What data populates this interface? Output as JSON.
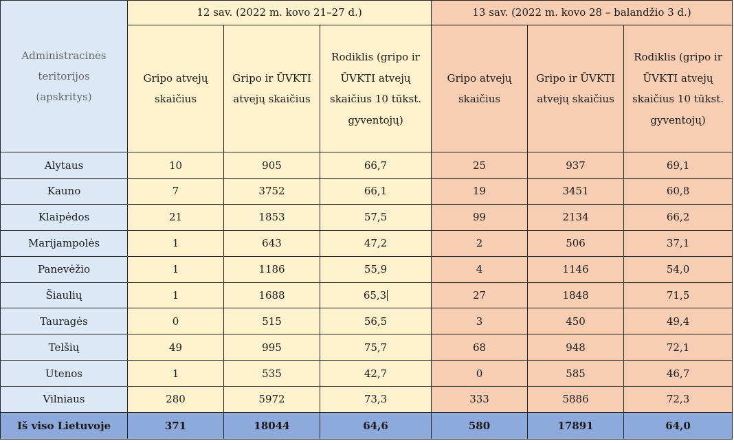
{
  "table": {
    "territory_header": "Administracinės teritorijos (apskritys)",
    "periods": [
      "12 sav. (2022 m. kovo 21–27 d.)",
      "13 sav. (2022 m. kovo 28 – balandžio 3 d.)"
    ],
    "columns": [
      "Gripo atvejų skaičius",
      "Gripo ir ŪVKTI atvejų skaičius",
      "Rodiklis (gripo ir ŪVKTI atvejų skaičius 10 tūkst. gyventojų)"
    ],
    "rows": [
      {
        "name": "Alytaus",
        "cells": [
          "10",
          "905",
          "66,7",
          "25",
          "937",
          "69,1"
        ]
      },
      {
        "name": "Kauno",
        "cells": [
          "7",
          "3752",
          "66,1",
          "19",
          "3451",
          "60,8"
        ]
      },
      {
        "name": "Klaipėdos",
        "cells": [
          "21",
          "1853",
          "57,5",
          "99",
          "2134",
          "66,2"
        ]
      },
      {
        "name": "Marijampolės",
        "cells": [
          "1",
          "643",
          "47,2",
          "2",
          "506",
          "37,1"
        ]
      },
      {
        "name": "Panevėžio",
        "cells": [
          "1",
          "1186",
          "55,9",
          "4",
          "1146",
          "54,0"
        ]
      },
      {
        "name": "Šiaulių",
        "cells": [
          "1",
          "1688",
          "65,3",
          "27",
          "1848",
          "71,5"
        ]
      },
      {
        "name": "Tauragės",
        "cells": [
          "0",
          "515",
          "56,5",
          "3",
          "450",
          "49,4"
        ]
      },
      {
        "name": "Telšių",
        "cells": [
          "49",
          "995",
          "75,7",
          "68",
          "948",
          "72,1"
        ]
      },
      {
        "name": "Utenos",
        "cells": [
          "1",
          "535",
          "42,7",
          "0",
          "585",
          "46,7"
        ]
      },
      {
        "name": "Vilniaus",
        "cells": [
          "280",
          "5972",
          "73,3",
          "333",
          "5886",
          "72,3"
        ]
      }
    ],
    "total": {
      "name": "Iš viso Lietuvoje",
      "cells": [
        "371",
        "18044",
        "64,6",
        "580",
        "17891",
        "64,0"
      ]
    }
  },
  "colors": {
    "territory_bg": "#dce8f6",
    "week12_bg": "#fdf2cd",
    "week13_bg": "#f7cdb4",
    "total_bg": "#8ea9db"
  }
}
